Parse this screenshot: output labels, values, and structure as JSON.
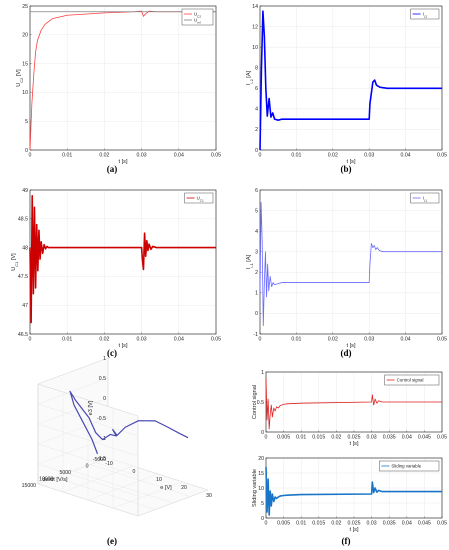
{
  "chart_data": [
    {
      "panel": "(a)",
      "type": "line",
      "ylabel": "U_C2 [V]",
      "xlabel": "t [s]",
      "xlim": [
        0,
        0.05
      ],
      "ylim": [
        0,
        25
      ],
      "xticks": [
        "0",
        "0.01",
        "0.02",
        "0.03",
        "0.04",
        "0.05"
      ],
      "yticks": [
        "0",
        "5",
        "10",
        "15",
        "20",
        "25"
      ],
      "legend": "top-right",
      "grid": true,
      "series": [
        {
          "name": "U_C2",
          "color": "#ff4040",
          "x": [
            0,
            0.0005,
            0.001,
            0.0015,
            0.002,
            0.003,
            0.004,
            0.006,
            0.01,
            0.02,
            0.028,
            0.03,
            0.0305,
            0.031,
            0.032,
            0.034,
            0.05
          ],
          "y": [
            0,
            8,
            13,
            17,
            19,
            20.8,
            21.8,
            22.8,
            23.4,
            23.8,
            24,
            24.1,
            23.2,
            23.6,
            24.1,
            24,
            24
          ]
        },
        {
          "name": "U_ref",
          "color": "#808080",
          "x": [
            0,
            0.05
          ],
          "y": [
            24,
            24
          ]
        }
      ]
    },
    {
      "panel": "(b)",
      "type": "line",
      "ylabel": "I_L2 [A]",
      "xlabel": "t [s]",
      "xlim": [
        0,
        0.05
      ],
      "ylim": [
        0,
        14
      ],
      "xticks": [
        "0",
        "0.01",
        "0.02",
        "0.03",
        "0.04",
        "0.05"
      ],
      "yticks": [
        "0",
        "2",
        "4",
        "6",
        "8",
        "10",
        "12",
        "14"
      ],
      "legend": "top-right",
      "grid": true,
      "series": [
        {
          "name": "I_L2",
          "color": "#0000ff",
          "x": [
            0,
            0.0004,
            0.0008,
            0.0012,
            0.0016,
            0.002,
            0.0025,
            0.003,
            0.0035,
            0.004,
            0.005,
            0.006,
            0.01,
            0.02,
            0.03,
            0.0302,
            0.031,
            0.0315,
            0.032,
            0.033,
            0.035,
            0.05
          ],
          "y": [
            0,
            8,
            13.5,
            11,
            6,
            3.3,
            5,
            3.2,
            3.6,
            3.0,
            2.9,
            3.0,
            3.0,
            3.0,
            3.0,
            4.5,
            6.6,
            6.8,
            6.3,
            6.1,
            6.0,
            6.0
          ]
        }
      ]
    },
    {
      "panel": "(c)",
      "type": "line",
      "ylabel": "U_C1 [V]",
      "xlabel": "t [s]",
      "xlim": [
        0,
        0.05
      ],
      "ylim": [
        46.5,
        49
      ],
      "xticks": [
        "0",
        "0.01",
        "0.02",
        "0.03",
        "0.04",
        "0.05"
      ],
      "yticks": [
        "46.5",
        "47",
        "47.5",
        "48",
        "48.5",
        "49"
      ],
      "legend": "top-right",
      "grid": true,
      "series": [
        {
          "name": "U_C1",
          "color": "#cc0000",
          "x": [
            0,
            0.0003,
            0.0006,
            0.0009,
            0.0012,
            0.0015,
            0.0018,
            0.0021,
            0.0024,
            0.0027,
            0.003,
            0.0034,
            0.0038,
            0.0042,
            0.0046,
            0.005,
            0.006,
            0.01,
            0.03,
            0.0302,
            0.0305,
            0.0308,
            0.0311,
            0.0314,
            0.0317,
            0.032,
            0.0325,
            0.033,
            0.034,
            0.05
          ],
          "y": [
            48,
            46.7,
            48.9,
            47.2,
            48.7,
            47.3,
            48.4,
            47.6,
            48.3,
            47.8,
            48.1,
            47.9,
            48.05,
            47.98,
            48.02,
            48,
            48,
            48,
            48,
            47.8,
            47.62,
            48.25,
            47.85,
            48.12,
            47.95,
            48.06,
            47.97,
            48.02,
            48,
            48
          ]
        }
      ]
    },
    {
      "panel": "(d)",
      "type": "line",
      "ylabel": "I_L1 [A]",
      "xlabel": "t [s]",
      "xlim": [
        0,
        0.05
      ],
      "ylim": [
        -1,
        6
      ],
      "xticks": [
        "0",
        "0.01",
        "0.02",
        "0.03",
        "0.04",
        "0.05"
      ],
      "yticks": [
        "-1",
        "0",
        "1",
        "2",
        "3",
        "4",
        "5",
        "6"
      ],
      "legend": "top-right",
      "grid": true,
      "series": [
        {
          "name": "I_L1",
          "color": "#6a6aff",
          "x": [
            0,
            0.0003,
            0.0006,
            0.0009,
            0.0012,
            0.0015,
            0.0018,
            0.0021,
            0.0024,
            0.0028,
            0.0032,
            0.0036,
            0.004,
            0.005,
            0.006,
            0.01,
            0.02,
            0.03,
            0.0302,
            0.0306,
            0.031,
            0.0314,
            0.0318,
            0.0322,
            0.0328,
            0.0335,
            0.034,
            0.05
          ],
          "y": [
            1,
            5.4,
            3.5,
            -0.6,
            1.5,
            3.0,
            0.8,
            2.4,
            1.1,
            1.8,
            1.3,
            1.5,
            1.4,
            1.45,
            1.5,
            1.5,
            1.5,
            1.5,
            2.4,
            3.4,
            3.2,
            3.3,
            3.1,
            3.2,
            3.05,
            3.02,
            3.0,
            3.0
          ]
        }
      ]
    },
    {
      "panel": "(e)",
      "type": "line",
      "projection": "3d",
      "xlabel": "e [V]",
      "ylabel": "de/dt [V/s]",
      "zlabel": "e3 [V]",
      "xlim": [
        -10,
        30
      ],
      "ylim": [
        -5000,
        15000
      ],
      "zlim": [
        -1.5,
        1
      ],
      "xticks": [
        "-10",
        "0",
        "10",
        "20",
        "30"
      ],
      "yticks": [
        "-5000",
        "0",
        "5000",
        "10000",
        "15000"
      ],
      "zticks": [
        "-1.5",
        "-1",
        "-0.5",
        "0",
        "0.5",
        "1"
      ],
      "grid": true,
      "series": [
        {
          "color": "#4848b4",
          "x": [
            -10,
            -8,
            -6,
            -4,
            -2,
            0,
            1,
            2,
            0.5,
            -1,
            0,
            1,
            0,
            2,
            6,
            12,
            18,
            22,
            26,
            29
          ],
          "y": [
            -2000,
            1000,
            5000,
            9000,
            11500,
            13000,
            12000,
            9000,
            6000,
            3000,
            1500,
            500,
            800,
            1000,
            1500,
            2000,
            1500,
            800,
            200,
            0
          ],
          "z": [
            -1.3,
            -0.8,
            -0.2,
            0.4,
            0.85,
            0.95,
            0.7,
            0.2,
            -0.3,
            -0.6,
            -0.5,
            -0.55,
            -0.4,
            -0.5,
            -0.2,
            0.1,
            0.2,
            0.1,
            0.0,
            -0.05
          ]
        }
      ]
    },
    {
      "panel": "(f)",
      "type": "line",
      "subplot": "top",
      "ylabel": "Control signal",
      "xlabel": "t [s]",
      "xlim": [
        0,
        0.05
      ],
      "ylim": [
        0,
        1
      ],
      "xticks": [
        "0",
        "0.005",
        "0.01",
        "0.015",
        "0.02",
        "0.025",
        "0.03",
        "0.035",
        "0.04",
        "0.045",
        "0.05"
      ],
      "yticks": [
        "0",
        "0.5",
        "1"
      ],
      "legend": "top-right",
      "grid": true,
      "series": [
        {
          "name": "Control signal",
          "color": "#e02020",
          "x": [
            0,
            0.0003,
            0.0006,
            0.0009,
            0.0012,
            0.0015,
            0.0018,
            0.0022,
            0.0026,
            0.003,
            0.0035,
            0.004,
            0.005,
            0.006,
            0.01,
            0.03,
            0.0302,
            0.0306,
            0.031,
            0.0315,
            0.032,
            0.033,
            0.05
          ],
          "y": [
            0.9,
            0.2,
            0.55,
            0.05,
            0.3,
            0.45,
            0.25,
            0.4,
            0.35,
            0.42,
            0.4,
            0.44,
            0.46,
            0.47,
            0.48,
            0.5,
            0.62,
            0.45,
            0.55,
            0.48,
            0.52,
            0.5,
            0.5
          ]
        }
      ]
    },
    {
      "panel": "(f)",
      "type": "line",
      "subplot": "bottom",
      "ylabel": "Sliding variable",
      "xlabel": "t [s]",
      "xlim": [
        0,
        0.05
      ],
      "ylim": [
        0,
        20
      ],
      "xticks": [
        "0",
        "0.005",
        "0.01",
        "0.015",
        "0.02",
        "0.025",
        "0.03",
        "0.035",
        "0.04",
        "0.045",
        "0.05"
      ],
      "yticks": [
        "0",
        "5",
        "10",
        "15",
        "20"
      ],
      "legend": "top-right",
      "grid": true,
      "series": [
        {
          "name": "Sliding variable",
          "color": "#1a75c8",
          "x": [
            0,
            0.0003,
            0.0006,
            0.0009,
            0.0012,
            0.0015,
            0.0018,
            0.0022,
            0.0026,
            0.003,
            0.0035,
            0.004,
            0.005,
            0.006,
            0.01,
            0.03,
            0.0302,
            0.0306,
            0.031,
            0.0315,
            0.032,
            0.033,
            0.05
          ],
          "y": [
            17,
            2,
            13,
            1,
            9,
            4,
            8,
            5.5,
            7,
            6.5,
            7,
            7.3,
            7.5,
            7.6,
            7.8,
            8,
            12,
            8.5,
            10,
            8.6,
            9.2,
            8.8,
            8.8
          ]
        }
      ]
    }
  ],
  "captions": [
    "(a)",
    "(b)",
    "(c)",
    "(d)",
    "(e)",
    "(f)"
  ]
}
